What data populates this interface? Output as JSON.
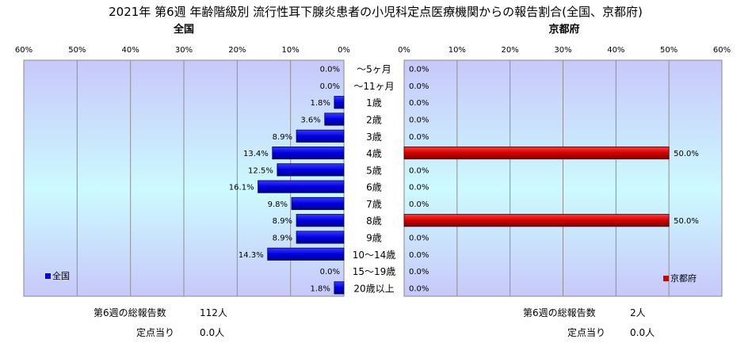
{
  "title": "2021年 第6週 年齢階級別 流行性耳下腺炎患者の小児科定点医療機関からの報告割合(全国、京都府)",
  "chart_data": [
    {
      "type": "bar",
      "orientation": "horizontal",
      "direction": "right-to-left",
      "title": "全国",
      "xlim": [
        0,
        60
      ],
      "xticks": [
        "60%",
        "50%",
        "40%",
        "30%",
        "20%",
        "10%",
        "0%"
      ],
      "categories": [
        "～5ヶ月",
        "～11ヶ月",
        "1歳",
        "2歳",
        "3歳",
        "4歳",
        "5歳",
        "6歳",
        "7歳",
        "8歳",
        "9歳",
        "10～14歳",
        "15～19歳",
        "20歳以上"
      ],
      "series": [
        {
          "name": "全国",
          "color": "#0000e0",
          "values": [
            0.0,
            0.0,
            1.8,
            3.6,
            8.9,
            13.4,
            12.5,
            16.1,
            9.8,
            8.9,
            8.9,
            14.3,
            0.0,
            1.8
          ],
          "labels": [
            "0.0%",
            "0.0%",
            "1.8%",
            "3.6%",
            "8.9%",
            "13.4%",
            "12.5%",
            "16.1%",
            "9.8%",
            "8.9%",
            "8.9%",
            "14.3%",
            "0.0%",
            "1.8%"
          ]
        }
      ],
      "legend": "bottom-left",
      "grid": true
    },
    {
      "type": "bar",
      "orientation": "horizontal",
      "direction": "left-to-right",
      "title": "京都府",
      "xlim": [
        0,
        60
      ],
      "xticks": [
        "0%",
        "10%",
        "20%",
        "30%",
        "40%",
        "50%",
        "60%"
      ],
      "categories": [
        "～5ヶ月",
        "～11ヶ月",
        "1歳",
        "2歳",
        "3歳",
        "4歳",
        "5歳",
        "6歳",
        "7歳",
        "8歳",
        "9歳",
        "10～14歳",
        "15～19歳",
        "20歳以上"
      ],
      "series": [
        {
          "name": "京都府",
          "color": "#cc0000",
          "values": [
            0.0,
            0.0,
            0.0,
            0.0,
            0.0,
            50.0,
            0.0,
            0.0,
            0.0,
            50.0,
            0.0,
            0.0,
            0.0,
            0.0
          ],
          "labels": [
            "0.0%",
            "0.0%",
            "0.0%",
            "0.0%",
            "0.0%",
            "50.0%",
            "0.0%",
            "0.0%",
            "0.0%",
            "50.0%",
            "0.0%",
            "0.0%",
            "0.0%",
            "0.0%"
          ]
        }
      ],
      "legend": "bottom-right",
      "grid": true
    }
  ],
  "footer": {
    "left": {
      "total_label": "第6週の総報告数",
      "total_value": "112人",
      "per_label": "定点当り",
      "per_value": "0.0人"
    },
    "right": {
      "total_label": "第6週の総報告数",
      "total_value": "2人",
      "per_label": "定点当り",
      "per_value": "0.0人"
    }
  }
}
